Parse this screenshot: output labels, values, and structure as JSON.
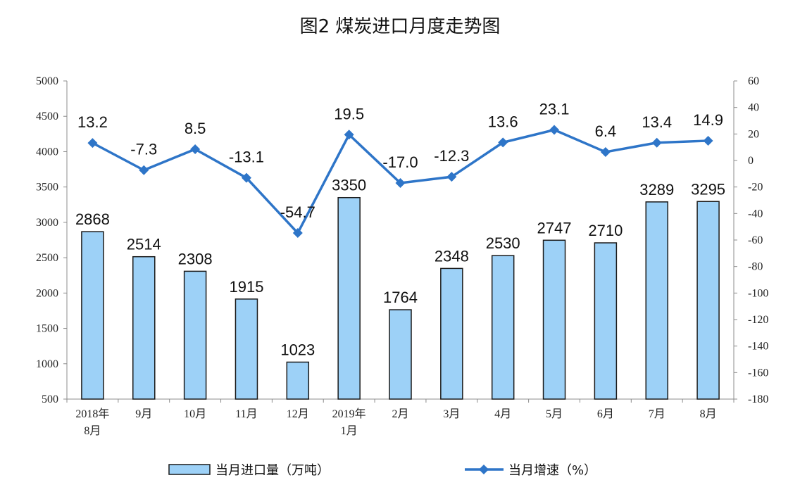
{
  "chart_data": {
    "title": "图2  煤炭进口月度走势图",
    "type": "bar",
    "categories": [
      [
        "2018年",
        "8月"
      ],
      [
        "9月"
      ],
      [
        "10月"
      ],
      [
        "11月"
      ],
      [
        "12月"
      ],
      [
        "2019年",
        "1月"
      ],
      [
        "2月"
      ],
      [
        "3月"
      ],
      [
        "4月"
      ],
      [
        "5月"
      ],
      [
        "6月"
      ],
      [
        "7月"
      ],
      [
        "8月"
      ]
    ],
    "series": [
      {
        "name": "当月进口量（万吨）",
        "type": "bar",
        "axis": "left",
        "color": "#9dd1f7",
        "values": [
          2868,
          2514,
          2308,
          1915,
          1023,
          3350,
          1764,
          2348,
          2530,
          2747,
          2710,
          3289,
          3295
        ]
      },
      {
        "name": "当月增速（%）",
        "type": "line",
        "axis": "right",
        "color": "#2e75c8",
        "values": [
          13.2,
          -7.3,
          8.5,
          -13.1,
          -54.7,
          19.5,
          -17.0,
          -12.3,
          13.6,
          23.1,
          6.4,
          13.4,
          14.9
        ],
        "labels": [
          "13.2",
          "-7.3",
          "8.5",
          "-13.1",
          "-54.7",
          "19.5",
          "-17.0",
          "-12.3",
          "13.6",
          "23.1",
          "6.4",
          "13.4",
          "14.9"
        ]
      }
    ],
    "y_left": {
      "range": [
        500,
        5000
      ],
      "ticks": [
        500,
        1000,
        1500,
        2000,
        2500,
        3000,
        3500,
        4000,
        4500,
        5000
      ]
    },
    "y_right": {
      "range": [
        -180,
        60
      ],
      "ticks": [
        -180,
        -160,
        -140,
        -120,
        -100,
        -80,
        -60,
        -40,
        -20,
        0,
        20,
        40,
        60
      ]
    },
    "grid": false,
    "legend": "bottom"
  }
}
